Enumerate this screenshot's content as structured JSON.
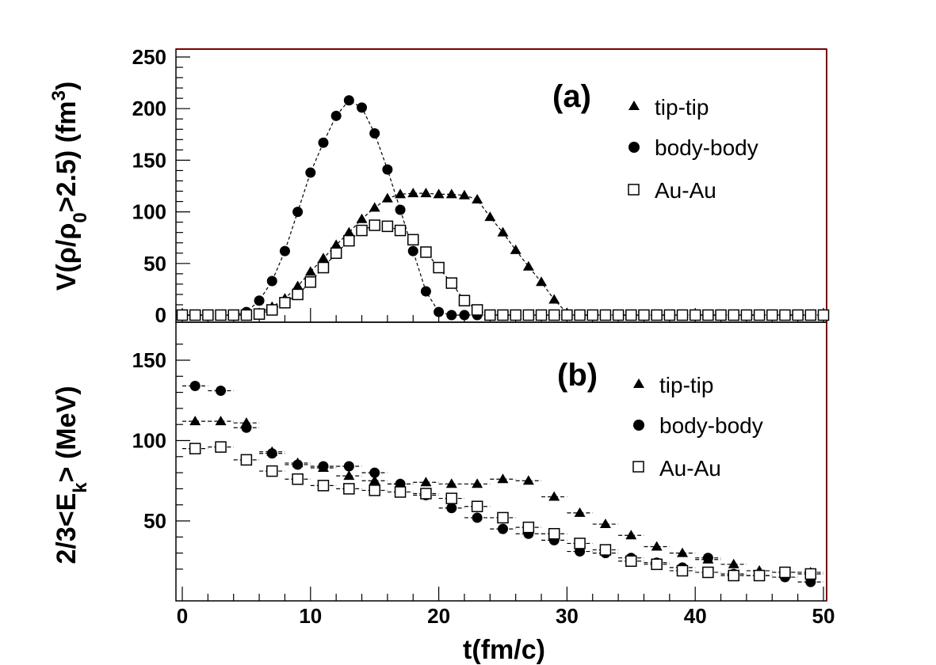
{
  "chart_data": [
    {
      "type": "scatter",
      "panel_label": "(a)",
      "xlabel": "t(fm/c)",
      "ylabel_parts": [
        "V(ρ/ρ",
        "0",
        ">2.5) (fm",
        "3",
        ")"
      ],
      "xlim": [
        0,
        50
      ],
      "ylim": [
        -10,
        260
      ],
      "x_ticks": [
        "0",
        "10",
        "20",
        "30",
        "40",
        "50"
      ],
      "y_ticks": [
        "0",
        "50",
        "100",
        "150",
        "200",
        "250"
      ],
      "legend_placement": "top-right",
      "series": [
        {
          "name": "tip-tip",
          "marker": "triangle",
          "x": [
            0,
            1,
            2,
            3,
            4,
            5,
            6,
            7,
            8,
            9,
            10,
            11,
            12,
            13,
            14,
            15,
            16,
            17,
            18,
            19,
            20,
            21,
            22,
            23,
            24,
            25,
            26,
            27,
            28,
            29,
            30,
            31,
            32,
            33,
            34,
            35,
            36,
            37,
            38,
            39,
            40,
            41,
            42,
            43,
            44,
            45,
            46,
            47,
            48,
            49,
            50
          ],
          "y": [
            0,
            0,
            0,
            0,
            0,
            0,
            2,
            8,
            16,
            28,
            42,
            55,
            68,
            80,
            93,
            104,
            113,
            117,
            118,
            118,
            117,
            117,
            116,
            112,
            95,
            80,
            63,
            47,
            32,
            15,
            2,
            0,
            0,
            0,
            0,
            0,
            0,
            0,
            0,
            0,
            0,
            0,
            0,
            0,
            0,
            0,
            0,
            0,
            0,
            0,
            0
          ]
        },
        {
          "name": "body-body",
          "marker": "circle",
          "x": [
            0,
            1,
            2,
            3,
            4,
            5,
            6,
            7,
            8,
            9,
            10,
            11,
            12,
            13,
            14,
            15,
            16,
            17,
            18,
            19,
            20,
            21,
            22,
            23,
            24,
            25,
            26,
            27,
            28,
            29,
            30,
            31,
            32,
            33,
            34,
            35,
            36,
            37,
            38,
            39,
            40,
            41,
            42,
            43,
            44,
            45,
            46,
            47,
            48,
            49,
            50
          ],
          "y": [
            0,
            0,
            0,
            0,
            0,
            3,
            14,
            33,
            62,
            100,
            138,
            167,
            193,
            208,
            201,
            176,
            141,
            102,
            62,
            23,
            3,
            0,
            0,
            0,
            0,
            0,
            0,
            0,
            0,
            0,
            0,
            0,
            0,
            0,
            0,
            0,
            0,
            0,
            0,
            0,
            0,
            0,
            0,
            0,
            0,
            0,
            0,
            0,
            0,
            0,
            0
          ]
        },
        {
          "name": "Au-Au",
          "marker": "open-square",
          "x": [
            0,
            1,
            2,
            3,
            4,
            5,
            6,
            7,
            8,
            9,
            10,
            11,
            12,
            13,
            14,
            15,
            16,
            17,
            18,
            19,
            20,
            21,
            22,
            23,
            24,
            25,
            26,
            27,
            28,
            29,
            30,
            31,
            32,
            33,
            34,
            35,
            36,
            37,
            38,
            39,
            40,
            41,
            42,
            43,
            44,
            45,
            46,
            47,
            48,
            49,
            50
          ],
          "y": [
            0,
            0,
            0,
            0,
            0,
            0,
            1,
            5,
            12,
            20,
            32,
            46,
            60,
            72,
            82,
            87,
            86,
            82,
            73,
            61,
            46,
            31,
            14,
            5,
            0,
            0,
            0,
            0,
            0,
            0,
            0,
            0,
            0,
            0,
            0,
            0,
            0,
            0,
            0,
            0,
            0,
            0,
            0,
            0,
            0,
            0,
            0,
            0,
            0,
            0,
            0
          ]
        }
      ]
    },
    {
      "type": "scatter",
      "panel_label": "(b)",
      "xlabel": "t(fm/c)",
      "ylabel_parts": [
        "2/3<E",
        "k",
        "> (MeV)"
      ],
      "xlim": [
        0,
        50
      ],
      "ylim": [
        10,
        170
      ],
      "x_ticks": [
        "0",
        "10",
        "20",
        "30",
        "40",
        "50"
      ],
      "y_ticks": [
        "50",
        "100",
        "150"
      ],
      "legend_placement": "top-right",
      "series": [
        {
          "name": "tip-tip",
          "marker": "triangle",
          "x": [
            1,
            3,
            5,
            7,
            9,
            11,
            13,
            15,
            17,
            19,
            21,
            23,
            25,
            27,
            29,
            31,
            33,
            35,
            37,
            39,
            41,
            43,
            45,
            47,
            49
          ],
          "y": [
            112,
            112,
            111,
            93,
            86,
            83,
            78,
            75,
            73,
            74,
            73,
            73,
            76,
            75,
            65,
            55,
            48,
            41,
            34,
            30,
            26,
            23,
            19,
            18,
            18
          ]
        },
        {
          "name": "body-body",
          "marker": "circle",
          "x": [
            1,
            3,
            5,
            7,
            9,
            11,
            13,
            15,
            17,
            19,
            21,
            23,
            25,
            27,
            29,
            31,
            33,
            35,
            37,
            39,
            41,
            43,
            45,
            47,
            49
          ],
          "y": [
            134,
            131,
            108,
            92,
            85,
            84,
            84,
            80,
            73,
            66,
            58,
            52,
            45,
            42,
            38,
            31,
            30,
            27,
            24,
            21,
            27,
            17,
            16,
            15,
            12
          ]
        },
        {
          "name": "Au-Au",
          "marker": "open-square",
          "x": [
            1,
            3,
            5,
            7,
            9,
            11,
            13,
            15,
            17,
            19,
            21,
            23,
            25,
            27,
            29,
            31,
            33,
            35,
            37,
            39,
            41,
            43,
            45,
            47,
            49
          ],
          "y": [
            95,
            96,
            88,
            81,
            76,
            72,
            70,
            69,
            68,
            67,
            64,
            59,
            52,
            46,
            42,
            36,
            32,
            25,
            23,
            19,
            18,
            16,
            16,
            18,
            17
          ]
        }
      ]
    }
  ]
}
